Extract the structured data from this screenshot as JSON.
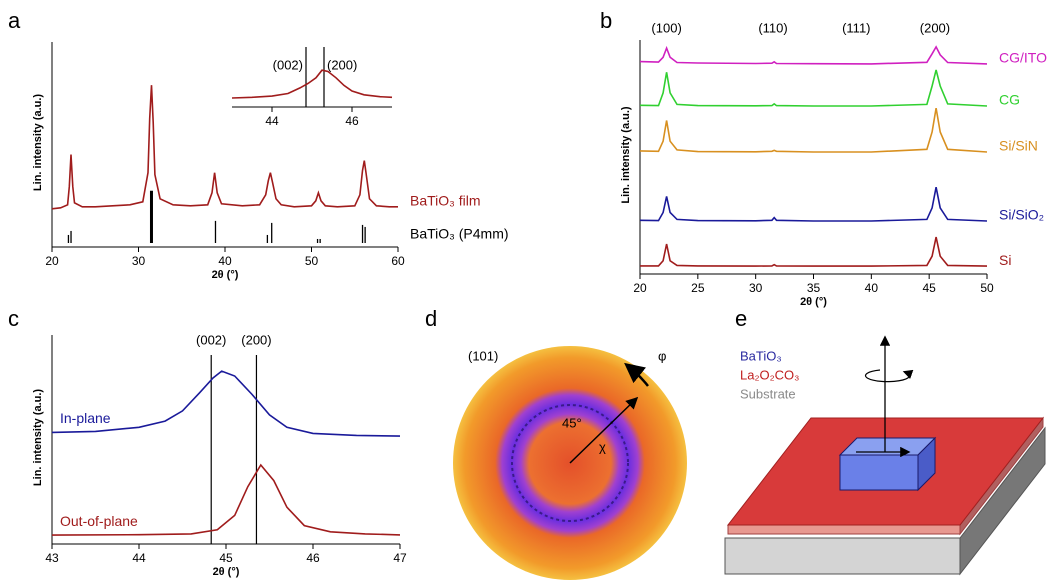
{
  "chart_data": [
    {
      "type": "line",
      "panel": "a",
      "xlabel": "2θ (°)",
      "ylabel": "Lin. intensity (a.u.)",
      "legend": "right",
      "xlim": [
        20,
        60
      ],
      "xticks": [
        20,
        30,
        40,
        50,
        60
      ],
      "ylim": [
        0,
        100
      ],
      "series": [
        {
          "name": "BaTiO₃ film",
          "color": "#a01c1c",
          "x": [
            20,
            21,
            21.8,
            22.0,
            22.2,
            22.4,
            22.6,
            23.5,
            25,
            27,
            29,
            30.5,
            31.1,
            31.3,
            31.5,
            31.7,
            31.9,
            32.5,
            34,
            36,
            38,
            38.5,
            38.8,
            39.1,
            39.6,
            42,
            44,
            44.7,
            45.0,
            45.25,
            45.5,
            45.9,
            46.5,
            48,
            50,
            50.5,
            50.8,
            51.1,
            51.6,
            53,
            55,
            55.6,
            55.9,
            56.1,
            56.3,
            56.7,
            57.5,
            59,
            60
          ],
          "values": [
            17,
            17.5,
            19,
            28,
            44,
            28,
            20,
            18,
            18,
            18.5,
            19,
            20.5,
            35,
            62,
            78.5,
            60,
            34,
            22,
            19,
            18.5,
            19,
            25,
            35,
            25,
            19.5,
            18.5,
            19,
            24,
            31,
            35,
            30,
            22,
            19,
            18,
            18.5,
            21,
            25,
            21,
            18.5,
            18,
            18.5,
            24,
            36,
            41,
            35,
            22,
            18.5,
            18,
            18
          ]
        },
        {
          "name": "BaTiO₃ (P4mm)",
          "color": "#000000",
          "type": "stick",
          "x": [
            21.9,
            22.2,
            31.5,
            38.9,
            44.9,
            45.4,
            50.7,
            51.0,
            55.9,
            56.2
          ],
          "values": [
            4,
            6,
            26,
            11,
            4,
            10,
            2,
            2,
            9,
            8
          ]
        }
      ]
    },
    {
      "type": "line",
      "xlim": [
        43,
        47
      ],
      "xticks": [
        44,
        46
      ],
      "ylim": [
        0,
        100
      ],
      "annotation_lines": true,
      "annotations": [
        {
          "text": "(002)",
          "x": 44.85
        },
        {
          "text": "(200)",
          "x": 45.3
        }
      ],
      "series": [
        {
          "color": "#a01c1c",
          "x": [
            43,
            43.5,
            44,
            44.4,
            44.7,
            44.9,
            45.1,
            45.25,
            45.4,
            45.6,
            45.8,
            46.0,
            46.3,
            46.7,
            47
          ],
          "values": [
            8,
            9,
            11,
            15,
            24,
            31,
            40,
            52,
            50,
            40,
            28,
            19,
            13,
            10,
            9
          ]
        }
      ]
    },
    {
      "type": "line",
      "panel": "b",
      "xlabel": "2θ (°)",
      "ylabel": "Lin. intensity (a.u.)",
      "legend": "right",
      "xlim": [
        20,
        50
      ],
      "xticks": [
        20,
        25,
        30,
        35,
        40,
        45,
        50
      ],
      "ylim": [
        0,
        100
      ],
      "annotations": [
        {
          "text": "(100)",
          "x": 22.3
        },
        {
          "text": "(110)",
          "x": 31.5
        },
        {
          "text": "(111)",
          "x": 38.7
        },
        {
          "text": "(200)",
          "x": 45.5
        }
      ],
      "x": [
        20,
        21.6,
        22.0,
        22.3,
        22.6,
        23.2,
        25,
        30,
        31.4,
        31.6,
        31.8,
        35,
        40,
        44.8,
        45.25,
        45.6,
        45.95,
        46.6,
        50
      ],
      "series": [
        {
          "name": "CG/ITO",
          "color": "#d020c0",
          "values": [
            90.6,
            90.4,
            92.5,
            96.5,
            92.5,
            90.2,
            90,
            89.8,
            89.9,
            90.5,
            89.8,
            89.7,
            89.6,
            90.3,
            94,
            97,
            93.5,
            90.2,
            89.6
          ]
        },
        {
          "name": "CG",
          "color": "#30d030",
          "values": [
            71.6,
            71.5,
            77,
            86,
            77,
            72,
            71.5,
            71.4,
            71.5,
            72.2,
            71.5,
            71.3,
            71.3,
            72,
            80,
            87,
            80,
            72.2,
            71.3
          ]
        },
        {
          "name": "Si/SiN",
          "color": "#d89020",
          "values": [
            51.8,
            51.6,
            56,
            65,
            56,
            52.2,
            51.5,
            51.4,
            51.6,
            52,
            51.6,
            51.3,
            51.3,
            52.5,
            60,
            70.4,
            60,
            52.5,
            51.3
          ]
        },
        {
          "name": "Si/SiO₂",
          "color": "#1a1a9a",
          "values": [
            21.6,
            21.5,
            25,
            32,
            25,
            22,
            21.5,
            21.4,
            21.6,
            22.8,
            21.6,
            21.3,
            21.3,
            22,
            27,
            36,
            27,
            22,
            21.3
          ]
        },
        {
          "name": "Si",
          "color": "#a01c1c",
          "values": [
            1.8,
            1.8,
            4,
            11.3,
            4,
            2,
            1.8,
            1.7,
            1.8,
            2.3,
            1.8,
            1.7,
            1.7,
            2,
            6,
            14.3,
            6,
            2,
            1.7
          ]
        }
      ]
    },
    {
      "type": "line",
      "panel": "c",
      "xlabel": "2θ (°)",
      "ylabel": "Lin. intensity (a.u.)",
      "legend": "left",
      "xlim": [
        43,
        47
      ],
      "xticks": [
        43,
        44,
        45,
        46,
        47
      ],
      "ylim": [
        0,
        100
      ],
      "annotation_lines": true,
      "annotations": [
        {
          "text": "(002)",
          "x": 44.83
        },
        {
          "text": "(200)",
          "x": 45.35
        }
      ],
      "series": [
        {
          "name": "In-plane",
          "color": "#1a1a9a",
          "x": [
            43,
            43.5,
            44,
            44.3,
            44.5,
            44.7,
            44.85,
            44.95,
            45.1,
            45.3,
            45.5,
            45.7,
            46,
            46.5,
            47
          ],
          "values": [
            52.5,
            53,
            55,
            58,
            63,
            72,
            79,
            82.4,
            80,
            71,
            61,
            55,
            52,
            51,
            50.7
          ]
        },
        {
          "name": "Out-of-plane",
          "color": "#a01c1c",
          "x": [
            43,
            44,
            44.6,
            44.9,
            45.1,
            45.25,
            45.4,
            45.55,
            45.7,
            45.9,
            46.2,
            46.6,
            47
          ],
          "values": [
            2.4,
            2.6,
            3,
            5,
            12,
            26,
            36.6,
            29,
            16,
            7,
            4,
            3,
            2.5
          ]
        }
      ]
    }
  ],
  "pole_figure": {
    "panel": "d",
    "label": "(101)",
    "phi": "φ",
    "angle": "45°",
    "chi": "χ"
  },
  "diagram": {
    "panel": "e",
    "legend": [
      {
        "text": "BaTiO₃",
        "color": "#2a2aa0"
      },
      {
        "text": "La₂O₂CO₃",
        "color": "#c02020"
      },
      {
        "text": "Substrate",
        "color": "#8a8a8a"
      }
    ]
  }
}
